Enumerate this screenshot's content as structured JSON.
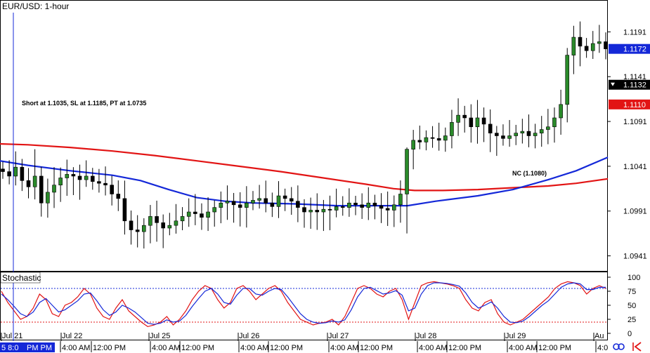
{
  "chart_data": [
    {
      "type": "candlestick",
      "title": "EUR/USD: 1-hour",
      "y_axis": {
        "ticks": [
          "1.1191",
          "1.1141",
          "1.1091",
          "1.1041",
          "1.0991",
          "1.0941"
        ],
        "range": [
          1.0925,
          1.1225
        ]
      },
      "price_tags": [
        {
          "label": "1.1172",
          "value": 1.1172,
          "color": "#1428d8"
        },
        {
          "label": "1.1132",
          "value": 1.1132,
          "color": "#000000"
        },
        {
          "label": "1.1110",
          "value": 1.111,
          "color": "#e21414"
        }
      ],
      "annotations": [
        {
          "text": "Short at 1.1035, SL at 1.1185, PT at 1.0735"
        },
        {
          "text": "NC (1.1080)"
        }
      ],
      "x_axis": {
        "date_labels": [
          "Jul 21",
          "Jul 22",
          "Jul 25",
          "Jul 26",
          "Jul 27",
          "Jul 28",
          "Jul 29",
          "Au"
        ],
        "time_labels": [
          "4:00 AM",
          "12:00 PM",
          "4:00 AM",
          "12:00 PM",
          "4:00 AM",
          "12:00 PM",
          "4:00 AM",
          "12:00 PM",
          "4:00 AM",
          "12:00 PM",
          "4:00 AM",
          "12:00 PM",
          "4:0"
        ],
        "cursor_label": "5 8:0",
        "cursor_time": "PM PM"
      },
      "moving_averages": [
        {
          "color": "#e21414",
          "points": [
            [
              0,
              1.1066
            ],
            [
              40,
              1.1065
            ],
            [
              100,
              1.1062
            ],
            [
              160,
              1.1058
            ],
            [
              220,
              1.1053
            ],
            [
              280,
              1.1047
            ],
            [
              340,
              1.1041
            ],
            [
              400,
              1.1035
            ],
            [
              460,
              1.1028
            ],
            [
              520,
              1.1021
            ],
            [
              560,
              1.1016
            ],
            [
              590,
              1.1014
            ],
            [
              630,
              1.1014
            ],
            [
              680,
              1.1015
            ],
            [
              730,
              1.1017
            ],
            [
              780,
              1.1019
            ],
            [
              820,
              1.1022
            ],
            [
              865,
              1.1027
            ]
          ]
        },
        {
          "color": "#1428d8",
          "points": [
            [
              0,
              1.1047
            ],
            [
              40,
              1.1042
            ],
            [
              100,
              1.1036
            ],
            [
              160,
              1.1031
            ],
            [
              200,
              1.1025
            ],
            [
              240,
              1.1015
            ],
            [
              280,
              1.1006
            ],
            [
              320,
              1.1002
            ],
            [
              360,
              1.1
            ],
            [
              420,
              1.0999
            ],
            [
              480,
              1.0997
            ],
            [
              530,
              1.0997
            ],
            [
              580,
              1.0997
            ],
            [
              620,
              1.1002
            ],
            [
              680,
              1.1008
            ],
            [
              730,
              1.1015
            ],
            [
              780,
              1.1026
            ],
            [
              820,
              1.1036
            ],
            [
              865,
              1.1051
            ]
          ]
        }
      ],
      "candle_seeds": [
        1.1035,
        1.103,
        1.104,
        1.1025,
        1.1018,
        1.103,
        1.1,
        1.1012,
        1.102,
        1.1028,
        1.1032,
        1.103,
        1.1026,
        1.103,
        1.1024,
        1.1022,
        1.102,
        1.101,
        1.1005,
        1.098,
        1.097,
        1.0968,
        1.0975,
        1.0985,
        1.0978,
        1.0972,
        1.0975,
        1.098,
        1.0985,
        1.099,
        1.0988,
        1.0984,
        1.099,
        1.0995,
        1.1,
        1.1002,
        1.0998,
        1.0995,
        1.1,
        1.1003,
        1.1005,
        1.1,
        1.0996,
        1.1008,
        1.1005,
        1.1002,
        1.0995,
        1.099,
        1.0992,
        1.099,
        1.0993,
        1.0992,
        1.0996,
        1.0995,
        1.1,
        1.0998,
        1.0995,
        1.1,
        1.0997,
        1.0994,
        1.0992,
        1.0998,
        1.101,
        1.106,
        1.107,
        1.1068,
        1.1073,
        1.1072,
        1.107,
        1.1075,
        1.109,
        1.1098,
        1.1095,
        1.1085,
        1.1095,
        1.1088,
        1.1078,
        1.1075,
        1.1072,
        1.1075,
        1.1078,
        1.108,
        1.1075,
        1.1078,
        1.1082,
        1.1085,
        1.1095,
        1.111,
        1.1165,
        1.1185,
        1.1175,
        1.117,
        1.1178,
        1.118,
        1.1172
      ]
    },
    {
      "type": "line",
      "title": "Stochastic",
      "y_axis": {
        "ticks": [
          "100",
          "75",
          "50",
          "25",
          "0"
        ],
        "range": [
          0,
          100
        ]
      },
      "levels": [
        80,
        20
      ],
      "series": [
        {
          "color": "#e21414",
          "values": [
            75,
            55,
            40,
            25,
            30,
            45,
            70,
            60,
            35,
            30,
            50,
            55,
            65,
            80,
            70,
            45,
            30,
            25,
            45,
            60,
            40,
            30,
            20,
            12,
            15,
            20,
            30,
            15,
            25,
            40,
            60,
            75,
            85,
            80,
            60,
            45,
            55,
            80,
            85,
            75,
            60,
            70,
            80,
            85,
            75,
            55,
            40,
            25,
            20,
            15,
            18,
            20,
            25,
            15,
            30,
            55,
            80,
            85,
            80,
            70,
            65,
            75,
            80,
            60,
            25,
            55,
            85,
            90,
            92,
            90,
            88,
            85,
            80,
            60,
            45,
            40,
            55,
            60,
            35,
            20,
            15,
            20,
            25,
            35,
            45,
            55,
            65,
            80,
            88,
            92,
            90,
            85,
            70,
            80,
            85,
            80
          ]
        },
        {
          "color": "#1428d8",
          "values": [
            70,
            60,
            48,
            35,
            30,
            38,
            55,
            62,
            50,
            38,
            42,
            50,
            58,
            70,
            72,
            58,
            42,
            32,
            38,
            50,
            45,
            38,
            28,
            18,
            16,
            18,
            24,
            20,
            22,
            32,
            48,
            62,
            75,
            80,
            70,
            55,
            52,
            68,
            80,
            80,
            70,
            68,
            75,
            80,
            78,
            65,
            50,
            35,
            25,
            20,
            18,
            19,
            22,
            20,
            24,
            42,
            65,
            80,
            82,
            76,
            70,
            72,
            76,
            68,
            40,
            45,
            70,
            85,
            90,
            90,
            89,
            87,
            84,
            72,
            55,
            45,
            50,
            56,
            45,
            30,
            20,
            19,
            22,
            30,
            40,
            50,
            58,
            70,
            82,
            88,
            90,
            88,
            78,
            78,
            82,
            82
          ]
        }
      ]
    }
  ]
}
